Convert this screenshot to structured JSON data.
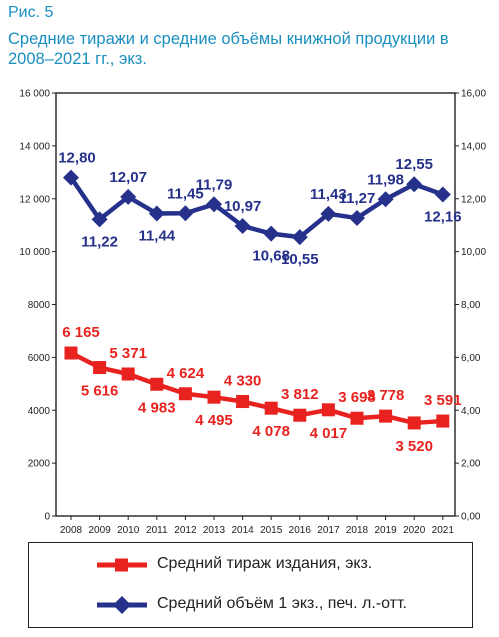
{
  "figure": {
    "label": "Рис. 5",
    "title": "Средние тиражи и средние объёмы книжной продукции в 2008–2021 гг., экз."
  },
  "chart_data": {
    "type": "line",
    "categories": [
      "2008",
      "2009",
      "2010",
      "2011",
      "2012",
      "2013",
      "2014",
      "2015",
      "2016",
      "2017",
      "2018",
      "2019",
      "2020",
      "2021"
    ],
    "series": [
      {
        "name": "Средний тираж издания, экз.",
        "axis": "left",
        "color": "#e8231f",
        "marker": "square",
        "values": [
          6165,
          5616,
          5371,
          4983,
          4624,
          4495,
          4330,
          4078,
          3812,
          4017,
          3698,
          3778,
          3520,
          3591
        ],
        "labels": [
          "6 165",
          "5 616",
          "5 371",
          "4 983",
          "4 624",
          "4 495",
          "4 330",
          "4 078",
          "3 812",
          "4 017",
          "3 698",
          "3 778",
          "3 520",
          "3 591"
        ]
      },
      {
        "name": "Средний объём 1 экз., печ. л.-отт.",
        "axis": "right",
        "color": "#25318a",
        "marker": "diamond",
        "values": [
          12.8,
          11.22,
          12.07,
          11.44,
          11.45,
          11.79,
          10.97,
          10.68,
          10.55,
          11.43,
          11.27,
          11.98,
          12.55,
          12.16
        ],
        "labels": [
          "12,80",
          "11,22",
          "12,07",
          "11,44",
          "11,45",
          "11,79",
          "10,97",
          "10,68",
          "10,55",
          "11,43",
          "11,27",
          "11,98",
          "12,55",
          "12,16"
        ]
      }
    ],
    "y_left": {
      "range": [
        0,
        16000
      ],
      "ticks": [
        "0",
        "2000",
        "4000",
        "6000",
        "8000",
        "10 000",
        "12 000",
        "14 000",
        "16 000"
      ]
    },
    "y_right": {
      "range": [
        0,
        16
      ],
      "ticks": [
        "0,00",
        "2,00",
        "4,00",
        "6,00",
        "8,00",
        "10,00",
        "12,00",
        "14,00",
        "16,00"
      ]
    },
    "grid": false,
    "legend_position": "bottom"
  }
}
